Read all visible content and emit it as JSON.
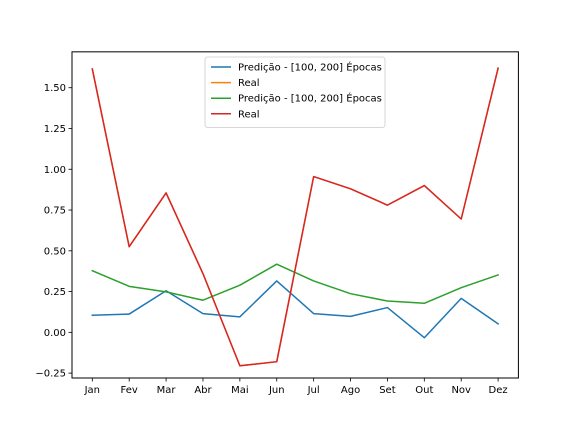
{
  "chart_data": {
    "type": "line",
    "categories": [
      "Jan",
      "Fev",
      "Mar",
      "Abr",
      "Mai",
      "Jun",
      "Jul",
      "Ago",
      "Set",
      "Out",
      "Nov",
      "Dez"
    ],
    "ylim": [
      -0.28,
      1.72
    ],
    "yticks": [
      -0.25,
      0.0,
      0.25,
      0.5,
      0.75,
      1.0,
      1.25,
      1.5
    ],
    "ytick_labels": [
      "−0.25",
      "0.00",
      "0.25",
      "0.50",
      "0.75",
      "1.00",
      "1.25",
      "1.50"
    ],
    "grid": false,
    "legend_position": "top-center",
    "series": [
      {
        "name": "Predição - [100, 200] Épocas",
        "color": "#1f77b4",
        "values": [
          0.105,
          0.112,
          0.255,
          0.115,
          0.095,
          0.315,
          0.115,
          0.098,
          0.152,
          -0.033,
          0.208,
          0.052
        ]
      },
      {
        "name": "Real",
        "color": "#ff7f0e",
        "values": [
          1.615,
          0.525,
          0.855,
          0.36,
          -0.205,
          -0.18,
          0.955,
          0.88,
          0.78,
          0.9,
          0.695,
          1.62
        ]
      },
      {
        "name": "Predição - [100, 200] Épocas",
        "color": "#2ca02c",
        "values": [
          0.378,
          0.282,
          0.248,
          0.197,
          0.289,
          0.418,
          0.315,
          0.237,
          0.192,
          0.178,
          0.274,
          0.352
        ]
      },
      {
        "name": "Real",
        "color": "#d62728",
        "values": [
          1.615,
          0.525,
          0.855,
          0.36,
          -0.205,
          -0.18,
          0.955,
          0.88,
          0.78,
          0.9,
          0.695,
          1.62
        ]
      }
    ]
  }
}
